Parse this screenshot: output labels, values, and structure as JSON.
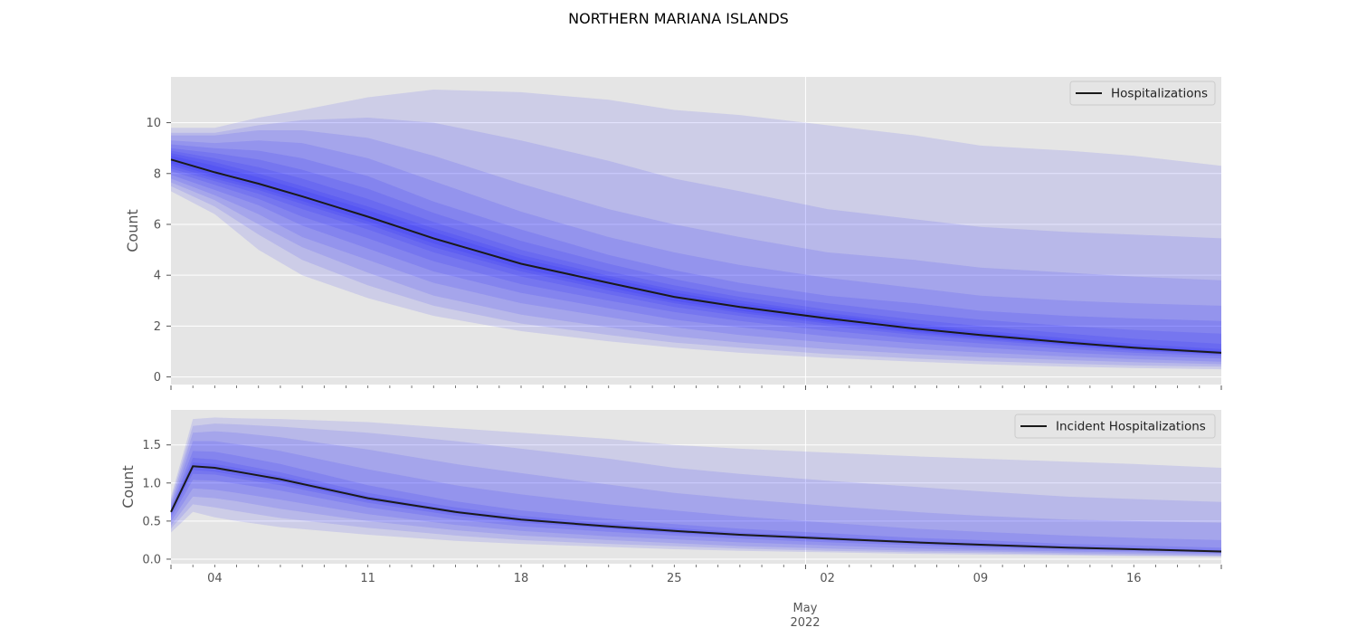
{
  "figure": {
    "suptitle": "NORTHERN MARIANA ISLANDS",
    "x_axis_month_label": "May",
    "x_axis_year_label": "2022"
  },
  "colors": {
    "panel_background": "#e5e5e5",
    "grid": "#ffffff",
    "band": "#0000ff",
    "median_line": "#1a1a1a",
    "text": "#555555"
  },
  "chart_data": [
    {
      "type": "area",
      "name": "hospitalizations-panel",
      "ylabel": "Count",
      "legend": "Hospitalizations",
      "legend_position": "top-right",
      "grid": true,
      "xlim": [
        "2022-04-02",
        "2022-05-20"
      ],
      "ylim": [
        -0.3,
        11.8
      ],
      "yticks": [
        0,
        2,
        4,
        6,
        8,
        10
      ],
      "ytick_labels": [
        "0",
        "2",
        "4",
        "6",
        "8",
        "10"
      ],
      "xticks": [
        "2022-04-04",
        "2022-04-11",
        "2022-04-18",
        "2022-04-25",
        "2022-05-02",
        "2022-05-09",
        "2022-05-16"
      ],
      "xtick_labels": [
        "04",
        "11",
        "18",
        "25",
        "02",
        "09",
        "16"
      ],
      "x": [
        "2022-04-02",
        "2022-04-04",
        "2022-04-06",
        "2022-04-08",
        "2022-04-11",
        "2022-04-14",
        "2022-04-18",
        "2022-04-22",
        "2022-04-25",
        "2022-04-28",
        "2022-05-02",
        "2022-05-06",
        "2022-05-09",
        "2022-05-13",
        "2022-05-16",
        "2022-05-20"
      ],
      "median": [
        8.55,
        8.05,
        7.6,
        7.1,
        6.3,
        5.45,
        4.45,
        3.7,
        3.15,
        2.75,
        2.3,
        1.9,
        1.65,
        1.35,
        1.15,
        0.95
      ],
      "bands": [
        {
          "coverage": 0.98,
          "lower": [
            7.3,
            6.4,
            5.0,
            4.0,
            3.1,
            2.4,
            1.8,
            1.4,
            1.15,
            0.95,
            0.75,
            0.6,
            0.5,
            0.4,
            0.35,
            0.3
          ],
          "upper": [
            9.8,
            9.8,
            10.2,
            10.5,
            11.0,
            11.3,
            11.2,
            10.9,
            10.5,
            10.3,
            9.9,
            9.5,
            9.1,
            8.9,
            8.7,
            8.3
          ]
        },
        {
          "coverage": 0.95,
          "lower": [
            7.5,
            6.7,
            5.6,
            4.6,
            3.6,
            2.8,
            2.1,
            1.65,
            1.35,
            1.15,
            0.9,
            0.72,
            0.62,
            0.52,
            0.45,
            0.4
          ],
          "upper": [
            9.6,
            9.6,
            9.9,
            10.1,
            10.2,
            10.0,
            9.3,
            8.5,
            7.8,
            7.3,
            6.6,
            6.2,
            5.9,
            5.7,
            5.6,
            5.45
          ]
        },
        {
          "coverage": 0.9,
          "lower": [
            7.65,
            6.95,
            6.0,
            5.1,
            4.1,
            3.2,
            2.45,
            1.95,
            1.6,
            1.35,
            1.1,
            0.9,
            0.78,
            0.66,
            0.58,
            0.5
          ],
          "upper": [
            9.5,
            9.5,
            9.7,
            9.7,
            9.4,
            8.7,
            7.6,
            6.6,
            6.0,
            5.5,
            4.9,
            4.6,
            4.3,
            4.1,
            3.95,
            3.8
          ]
        },
        {
          "coverage": 0.8,
          "lower": [
            7.8,
            7.15,
            6.4,
            5.5,
            4.6,
            3.7,
            2.9,
            2.35,
            1.95,
            1.65,
            1.35,
            1.1,
            0.96,
            0.8,
            0.7,
            0.6
          ],
          "upper": [
            9.3,
            9.2,
            9.3,
            9.2,
            8.6,
            7.7,
            6.5,
            5.5,
            4.9,
            4.4,
            3.9,
            3.5,
            3.2,
            3.0,
            2.9,
            2.8
          ]
        },
        {
          "coverage": 0.7,
          "lower": [
            7.95,
            7.35,
            6.75,
            5.95,
            5.05,
            4.15,
            3.3,
            2.7,
            2.25,
            1.95,
            1.6,
            1.32,
            1.15,
            0.95,
            0.84,
            0.72
          ],
          "upper": [
            9.15,
            9.0,
            8.9,
            8.6,
            7.9,
            6.9,
            5.8,
            4.8,
            4.2,
            3.7,
            3.2,
            2.9,
            2.6,
            2.4,
            2.3,
            2.2
          ]
        },
        {
          "coverage": 0.6,
          "lower": [
            8.1,
            7.55,
            7.0,
            6.3,
            5.45,
            4.55,
            3.65,
            3.0,
            2.55,
            2.2,
            1.82,
            1.5,
            1.32,
            1.1,
            0.95,
            0.82
          ],
          "upper": [
            9.0,
            8.8,
            8.55,
            8.15,
            7.4,
            6.45,
            5.35,
            4.45,
            3.85,
            3.35,
            2.9,
            2.5,
            2.25,
            2.0,
            1.85,
            1.7
          ]
        },
        {
          "coverage": 0.5,
          "lower": [
            8.2,
            7.7,
            7.2,
            6.6,
            5.8,
            4.9,
            3.95,
            3.25,
            2.75,
            2.4,
            2.0,
            1.65,
            1.45,
            1.2,
            1.03,
            0.88
          ],
          "upper": [
            8.9,
            8.6,
            8.25,
            7.8,
            7.0,
            6.1,
            5.0,
            4.15,
            3.6,
            3.15,
            2.65,
            2.25,
            2.0,
            1.7,
            1.5,
            1.3
          ]
        },
        {
          "coverage": 0.4,
          "lower": [
            8.3,
            7.8,
            7.35,
            6.8,
            6.0,
            5.1,
            4.15,
            3.4,
            2.9,
            2.52,
            2.1,
            1.73,
            1.52,
            1.25,
            1.07,
            0.9
          ],
          "upper": [
            8.8,
            8.45,
            8.0,
            7.5,
            6.7,
            5.85,
            4.8,
            3.98,
            3.43,
            3.0,
            2.52,
            2.1,
            1.83,
            1.52,
            1.3,
            1.1
          ]
        },
        {
          "coverage": 0.3,
          "lower": [
            8.4,
            7.9,
            7.45,
            6.92,
            6.12,
            5.25,
            4.27,
            3.52,
            2.99,
            2.6,
            2.17,
            1.79,
            1.56,
            1.28,
            1.09,
            0.91
          ],
          "upper": [
            8.7,
            8.3,
            7.85,
            7.35,
            6.55,
            5.7,
            4.65,
            3.88,
            3.32,
            2.9,
            2.44,
            2.02,
            1.75,
            1.43,
            1.22,
            1.02
          ]
        }
      ]
    },
    {
      "type": "area",
      "name": "incident-hospitalizations-panel",
      "ylabel": "Count",
      "legend": "Incident Hospitalizations",
      "legend_position": "top-right",
      "grid": true,
      "xlim": [
        "2022-04-02",
        "2022-05-20"
      ],
      "ylim": [
        -0.06,
        1.96
      ],
      "yticks": [
        0.0,
        0.5,
        1.0,
        1.5
      ],
      "ytick_labels": [
        "0.0",
        "0.5",
        "1.0",
        "1.5"
      ],
      "xticks": [
        "2022-04-04",
        "2022-04-11",
        "2022-04-18",
        "2022-04-25",
        "2022-05-02",
        "2022-05-09",
        "2022-05-16"
      ],
      "xtick_labels": [
        "04",
        "11",
        "18",
        "25",
        "02",
        "09",
        "16"
      ],
      "x": [
        "2022-04-02",
        "2022-04-03",
        "2022-04-04",
        "2022-04-05",
        "2022-04-07",
        "2022-04-11",
        "2022-04-15",
        "2022-04-18",
        "2022-04-22",
        "2022-04-25",
        "2022-04-28",
        "2022-05-02",
        "2022-05-06",
        "2022-05-09",
        "2022-05-13",
        "2022-05-16",
        "2022-05-20"
      ],
      "median": [
        0.62,
        1.22,
        1.2,
        1.15,
        1.05,
        0.8,
        0.62,
        0.52,
        0.43,
        0.37,
        0.32,
        0.27,
        0.22,
        0.19,
        0.15,
        0.13,
        0.1
      ],
      "bands": [
        {
          "coverage": 0.98,
          "lower": [
            0.35,
            0.62,
            0.55,
            0.5,
            0.42,
            0.32,
            0.24,
            0.2,
            0.16,
            0.13,
            0.11,
            0.09,
            0.07,
            0.06,
            0.05,
            0.04,
            0.03
          ],
          "upper": [
            0.82,
            1.84,
            1.86,
            1.85,
            1.84,
            1.8,
            1.72,
            1.66,
            1.58,
            1.5,
            1.45,
            1.4,
            1.35,
            1.32,
            1.28,
            1.25,
            1.2
          ]
        },
        {
          "coverage": 0.95,
          "lower": [
            0.4,
            0.72,
            0.68,
            0.63,
            0.54,
            0.41,
            0.31,
            0.25,
            0.2,
            0.17,
            0.14,
            0.11,
            0.09,
            0.08,
            0.06,
            0.05,
            0.04
          ],
          "upper": [
            0.78,
            1.75,
            1.78,
            1.77,
            1.74,
            1.66,
            1.55,
            1.45,
            1.32,
            1.2,
            1.12,
            1.03,
            0.95,
            0.89,
            0.82,
            0.79,
            0.75
          ]
        },
        {
          "coverage": 0.9,
          "lower": [
            0.44,
            0.82,
            0.8,
            0.76,
            0.66,
            0.5,
            0.38,
            0.31,
            0.25,
            0.21,
            0.17,
            0.14,
            0.11,
            0.1,
            0.08,
            0.07,
            0.05
          ],
          "upper": [
            0.74,
            1.66,
            1.68,
            1.66,
            1.6,
            1.44,
            1.25,
            1.13,
            0.98,
            0.87,
            0.79,
            0.7,
            0.62,
            0.57,
            0.52,
            0.5,
            0.48
          ]
        },
        {
          "coverage": 0.8,
          "lower": [
            0.49,
            0.93,
            0.91,
            0.87,
            0.78,
            0.59,
            0.45,
            0.37,
            0.3,
            0.26,
            0.22,
            0.18,
            0.14,
            0.12,
            0.1,
            0.09,
            0.07
          ],
          "upper": [
            0.7,
            1.55,
            1.55,
            1.51,
            1.42,
            1.18,
            0.97,
            0.85,
            0.72,
            0.64,
            0.56,
            0.48,
            0.4,
            0.36,
            0.31,
            0.28,
            0.25
          ]
        },
        {
          "coverage": 0.6,
          "lower": [
            0.54,
            1.04,
            1.03,
            0.99,
            0.9,
            0.68,
            0.52,
            0.43,
            0.36,
            0.31,
            0.27,
            0.22,
            0.18,
            0.15,
            0.12,
            0.11,
            0.08
          ],
          "upper": [
            0.67,
            1.42,
            1.41,
            1.36,
            1.25,
            0.97,
            0.76,
            0.64,
            0.53,
            0.46,
            0.4,
            0.34,
            0.28,
            0.25,
            0.2,
            0.18,
            0.15
          ]
        },
        {
          "coverage": 0.4,
          "lower": [
            0.58,
            1.12,
            1.11,
            1.06,
            0.97,
            0.74,
            0.57,
            0.48,
            0.4,
            0.34,
            0.3,
            0.25,
            0.2,
            0.17,
            0.14,
            0.12,
            0.09
          ],
          "upper": [
            0.65,
            1.33,
            1.31,
            1.25,
            1.14,
            0.87,
            0.68,
            0.57,
            0.47,
            0.41,
            0.35,
            0.3,
            0.24,
            0.21,
            0.17,
            0.15,
            0.12
          ]
        },
        {
          "coverage": 0.2,
          "lower": [
            0.6,
            1.17,
            1.15,
            1.1,
            1.01,
            0.77,
            0.6,
            0.5,
            0.41,
            0.35,
            0.31,
            0.26,
            0.21,
            0.18,
            0.14,
            0.12,
            0.1
          ],
          "upper": [
            0.64,
            1.27,
            1.25,
            1.2,
            1.09,
            0.83,
            0.64,
            0.54,
            0.45,
            0.39,
            0.33,
            0.28,
            0.23,
            0.2,
            0.16,
            0.14,
            0.11
          ]
        }
      ]
    }
  ]
}
